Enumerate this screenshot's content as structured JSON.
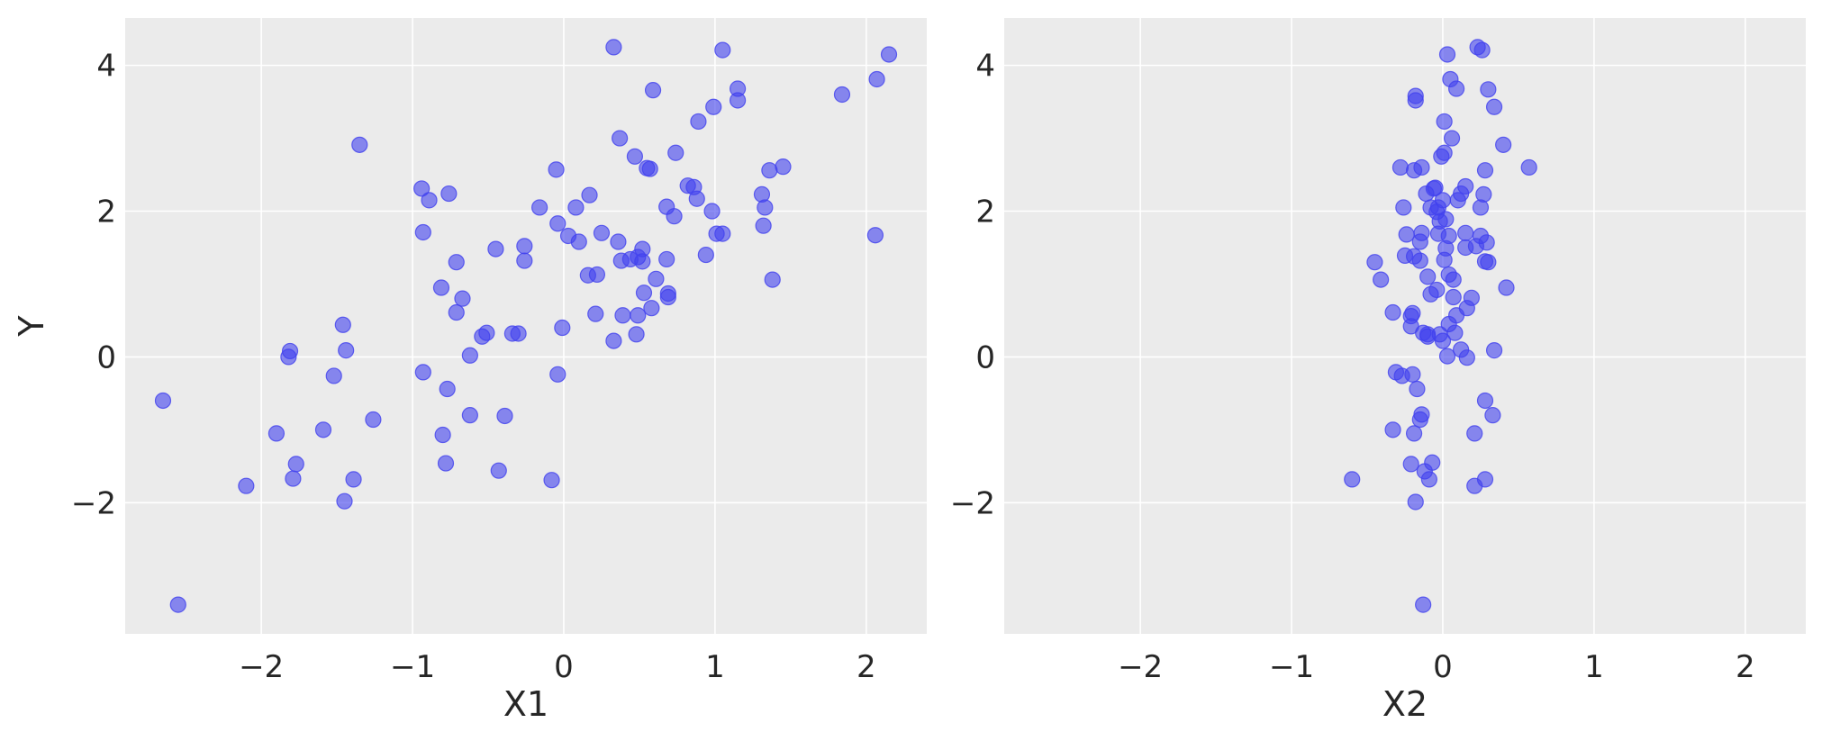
{
  "chart_data": [
    {
      "type": "scatter",
      "xlabel": "X1",
      "ylabel": "Y",
      "xlim": [
        -2.9,
        2.4
      ],
      "ylim": [
        -3.8,
        4.65
      ],
      "xticks": [
        -2,
        -1,
        0,
        1,
        2
      ],
      "yticks": [
        -2,
        0,
        2,
        4
      ],
      "xtick_labels": [
        "−2",
        "−1",
        "0",
        "1",
        "2"
      ],
      "ytick_labels": [
        "−2",
        "0",
        "2",
        "4"
      ],
      "grid": true,
      "marker_color": "#4141EE",
      "background": "#EBEBEB",
      "points": [
        [
          -2.65,
          -0.6
        ],
        [
          -2.55,
          -3.4
        ],
        [
          -2.1,
          -1.77
        ],
        [
          -1.9,
          -1.05
        ],
        [
          -1.82,
          0.0
        ],
        [
          -1.81,
          0.08
        ],
        [
          -1.79,
          -1.67
        ],
        [
          -1.77,
          -1.47
        ],
        [
          -1.59,
          -1.0
        ],
        [
          -1.52,
          -0.26
        ],
        [
          -1.46,
          0.44
        ],
        [
          -1.45,
          -1.98
        ],
        [
          -1.44,
          0.09
        ],
        [
          -1.39,
          -1.68
        ],
        [
          -1.35,
          2.91
        ],
        [
          -1.26,
          -0.86
        ],
        [
          -0.94,
          2.31
        ],
        [
          -0.93,
          1.71
        ],
        [
          -0.93,
          -0.21
        ],
        [
          -0.89,
          2.15
        ],
        [
          -0.81,
          0.95
        ],
        [
          -0.8,
          -1.07
        ],
        [
          -0.78,
          -1.46
        ],
        [
          -0.77,
          -0.44
        ],
        [
          -0.76,
          2.24
        ],
        [
          -0.71,
          1.3
        ],
        [
          -0.71,
          0.61
        ],
        [
          -0.67,
          0.8
        ],
        [
          -0.62,
          0.02
        ],
        [
          -0.62,
          -0.8
        ],
        [
          -0.54,
          0.28
        ],
        [
          -0.51,
          0.33
        ],
        [
          -0.45,
          1.48
        ],
        [
          -0.43,
          -1.56
        ],
        [
          -0.39,
          -0.81
        ],
        [
          -0.34,
          0.32
        ],
        [
          -0.3,
          0.32
        ],
        [
          -0.26,
          1.32
        ],
        [
          -0.26,
          1.52
        ],
        [
          -0.16,
          2.05
        ],
        [
          -0.08,
          -1.69
        ],
        [
          -0.05,
          2.57
        ],
        [
          -0.04,
          -0.24
        ],
        [
          -0.04,
          1.83
        ],
        [
          -0.01,
          0.4
        ],
        [
          0.03,
          1.66
        ],
        [
          0.08,
          2.05
        ],
        [
          0.1,
          1.58
        ],
        [
          0.16,
          1.12
        ],
        [
          0.17,
          2.22
        ],
        [
          0.21,
          0.59
        ],
        [
          0.22,
          1.13
        ],
        [
          0.25,
          1.7
        ],
        [
          0.33,
          0.22
        ],
        [
          0.33,
          4.25
        ],
        [
          0.36,
          1.58
        ],
        [
          0.37,
          3.0
        ],
        [
          0.38,
          1.32
        ],
        [
          0.39,
          0.57
        ],
        [
          0.44,
          1.34
        ],
        [
          0.47,
          2.75
        ],
        [
          0.48,
          0.31
        ],
        [
          0.49,
          0.57
        ],
        [
          0.49,
          1.37
        ],
        [
          0.52,
          1.31
        ],
        [
          0.52,
          1.48
        ],
        [
          0.53,
          0.88
        ],
        [
          0.55,
          2.59
        ],
        [
          0.57,
          2.58
        ],
        [
          0.58,
          0.67
        ],
        [
          0.59,
          3.66
        ],
        [
          0.61,
          1.07
        ],
        [
          0.68,
          2.06
        ],
        [
          0.68,
          1.34
        ],
        [
          0.69,
          0.82
        ],
        [
          0.69,
          0.87
        ],
        [
          0.73,
          1.93
        ],
        [
          0.74,
          2.8
        ],
        [
          0.82,
          2.35
        ],
        [
          0.86,
          2.33
        ],
        [
          0.88,
          2.17
        ],
        [
          0.89,
          3.23
        ],
        [
          0.94,
          1.4
        ],
        [
          0.98,
          2.0
        ],
        [
          0.99,
          3.43
        ],
        [
          1.01,
          1.69
        ],
        [
          1.05,
          1.69
        ],
        [
          1.05,
          4.21
        ],
        [
          1.15,
          3.52
        ],
        [
          1.15,
          3.68
        ],
        [
          1.31,
          2.23
        ],
        [
          1.32,
          1.8
        ],
        [
          1.33,
          2.05
        ],
        [
          1.36,
          2.56
        ],
        [
          1.38,
          1.06
        ],
        [
          1.45,
          2.61
        ],
        [
          1.84,
          3.6
        ],
        [
          2.06,
          1.67
        ],
        [
          2.07,
          3.81
        ],
        [
          2.15,
          4.15
        ]
      ]
    },
    {
      "type": "scatter",
      "xlabel": "X2",
      "ylabel": "",
      "xlim": [
        -2.9,
        2.4
      ],
      "ylim": [
        -3.8,
        4.65
      ],
      "xticks": [
        -2,
        -1,
        0,
        1,
        2
      ],
      "yticks": [
        -2,
        0,
        2,
        4
      ],
      "xtick_labels": [
        "−2",
        "−1",
        "0",
        "1",
        "2"
      ],
      "ytick_labels": [
        "−2",
        "0",
        "2",
        "4"
      ],
      "grid": true,
      "marker_color": "#4141EE",
      "background": "#EBEBEB",
      "points": [
        [
          -0.6,
          -1.68
        ],
        [
          -0.45,
          1.3
        ],
        [
          -0.41,
          1.06
        ],
        [
          -0.33,
          0.61
        ],
        [
          -0.33,
          -1.0
        ],
        [
          -0.31,
          -0.21
        ],
        [
          -0.28,
          2.6
        ],
        [
          -0.27,
          -0.26
        ],
        [
          -0.26,
          2.05
        ],
        [
          -0.25,
          1.39
        ],
        [
          -0.24,
          1.68
        ],
        [
          -0.21,
          0.56
        ],
        [
          -0.21,
          0.42
        ],
        [
          -0.21,
          -1.47
        ],
        [
          -0.2,
          0.6
        ],
        [
          -0.2,
          -0.24
        ],
        [
          -0.19,
          1.38
        ],
        [
          -0.19,
          2.56
        ],
        [
          -0.19,
          -1.05
        ],
        [
          -0.18,
          3.58
        ],
        [
          -0.18,
          3.52
        ],
        [
          -0.18,
          -1.99
        ],
        [
          -0.17,
          -0.44
        ],
        [
          -0.15,
          1.32
        ],
        [
          -0.15,
          1.58
        ],
        [
          -0.15,
          -0.86
        ],
        [
          -0.14,
          1.7
        ],
        [
          -0.14,
          2.6
        ],
        [
          -0.14,
          -0.79
        ],
        [
          -0.13,
          0.33
        ],
        [
          -0.13,
          -3.4
        ],
        [
          -0.12,
          -1.57
        ],
        [
          -0.11,
          2.24
        ],
        [
          -0.1,
          0.31
        ],
        [
          -0.1,
          1.1
        ],
        [
          -0.1,
          0.28
        ],
        [
          -0.09,
          -1.68
        ],
        [
          -0.08,
          0.86
        ],
        [
          -0.08,
          2.05
        ],
        [
          -0.07,
          -1.45
        ],
        [
          -0.06,
          2.31
        ],
        [
          -0.05,
          2.32
        ],
        [
          -0.04,
          0.92
        ],
        [
          -0.04,
          1.99
        ],
        [
          -0.03,
          2.05
        ],
        [
          -0.03,
          1.69
        ],
        [
          -0.02,
          0.31
        ],
        [
          -0.02,
          1.86
        ],
        [
          -0.01,
          2.75
        ],
        [
          0.0,
          0.22
        ],
        [
          0.0,
          2.15
        ],
        [
          0.01,
          3.23
        ],
        [
          0.01,
          1.33
        ],
        [
          0.01,
          2.8
        ],
        [
          0.02,
          1.89
        ],
        [
          0.02,
          1.49
        ],
        [
          0.03,
          4.15
        ],
        [
          0.03,
          0.01
        ],
        [
          0.04,
          0.45
        ],
        [
          0.04,
          1.66
        ],
        [
          0.04,
          1.13
        ],
        [
          0.05,
          3.81
        ],
        [
          0.06,
          3.0
        ],
        [
          0.07,
          1.06
        ],
        [
          0.07,
          0.82
        ],
        [
          0.08,
          0.33
        ],
        [
          0.09,
          3.68
        ],
        [
          0.09,
          0.57
        ],
        [
          0.1,
          2.15
        ],
        [
          0.12,
          0.1
        ],
        [
          0.12,
          2.24
        ],
        [
          0.15,
          1.7
        ],
        [
          0.15,
          1.5
        ],
        [
          0.15,
          2.34
        ],
        [
          0.16,
          0.67
        ],
        [
          0.16,
          -0.01
        ],
        [
          0.19,
          0.81
        ],
        [
          0.21,
          -1.77
        ],
        [
          0.21,
          -1.05
        ],
        [
          0.22,
          1.52
        ],
        [
          0.23,
          4.25
        ],
        [
          0.25,
          2.05
        ],
        [
          0.25,
          1.66
        ],
        [
          0.26,
          4.21
        ],
        [
          0.27,
          2.23
        ],
        [
          0.28,
          2.56
        ],
        [
          0.28,
          -1.68
        ],
        [
          0.28,
          1.31
        ],
        [
          0.28,
          -0.6
        ],
        [
          0.29,
          1.57
        ],
        [
          0.3,
          3.67
        ],
        [
          0.3,
          1.3
        ],
        [
          0.33,
          -0.8
        ],
        [
          0.34,
          3.43
        ],
        [
          0.34,
          0.09
        ],
        [
          0.4,
          2.91
        ],
        [
          0.42,
          0.95
        ],
        [
          0.57,
          2.6
        ]
      ]
    }
  ]
}
